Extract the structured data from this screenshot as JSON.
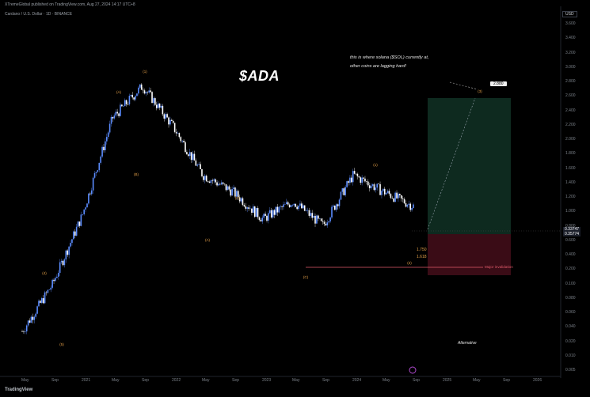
{
  "header": {
    "published_by": "XTremeGlobal published on TradingView.com, Aug 27, 2024 14:17 UTC+8",
    "symbol_line": "Cardano / U.S. Dollar · 1D · BINANCE"
  },
  "title": "$ADA",
  "annotation_lines": [
    "this is where solana ($SOL) currently at,",
    "other coins are lagging hard!"
  ],
  "target_box_label": "2.880",
  "alternative_label": "Alternative",
  "major_invalidation_label": "Major invalidation",
  "fib_levels": [
    "1.750",
    "1.618"
  ],
  "currency": "USD",
  "current_price_tags": [
    "0.33747",
    "0.35774"
  ],
  "price_axis_labels": [
    "3.600",
    "3.400",
    "3.200",
    "3.000",
    "2.800",
    "2.600",
    "2.400",
    "2.200",
    "2.000",
    "1.800",
    "1.600",
    "1.400",
    "1.200",
    "1.000",
    "0.800",
    "0.600",
    "0.400",
    "0.200",
    "0.100",
    "0.080",
    "0.060",
    "0.040",
    "0.020",
    "0.010",
    "0.005"
  ],
  "time_axis_labels": [
    "May",
    "Sep",
    "2021",
    "May",
    "Sep",
    "2022",
    "May",
    "Sep",
    "2023",
    "May",
    "Sep",
    "2024",
    "May",
    "Sep",
    "2025",
    "May",
    "Sep",
    "2026"
  ],
  "brand": "TradingView",
  "colors": {
    "up": "#5b8cff",
    "down": "#ffffff",
    "wave_label": "#e8a34a",
    "green_zone": "#0f2a20",
    "red_zone": "#3a0c14",
    "invalidation_line": "#e05a6a"
  },
  "chart_data": {
    "type": "line",
    "title": "$ADA",
    "x": [
      "2020-05",
      "2020-09",
      "2021-01",
      "2021-05",
      "2021-09",
      "2022-01",
      "2022-05",
      "2022-09",
      "2023-01",
      "2023-05",
      "2023-09",
      "2024-01",
      "2024-05",
      "2024-08"
    ],
    "series": [
      {
        "values": [
          0.04,
          0.09,
          0.3,
          1.6,
          2.8,
          1.4,
          0.6,
          0.45,
          0.28,
          0.38,
          0.25,
          0.6,
          0.45,
          0.35
        ]
      }
    ],
    "projection_target": 2.88,
    "legend": "none",
    "grid": false
  }
}
